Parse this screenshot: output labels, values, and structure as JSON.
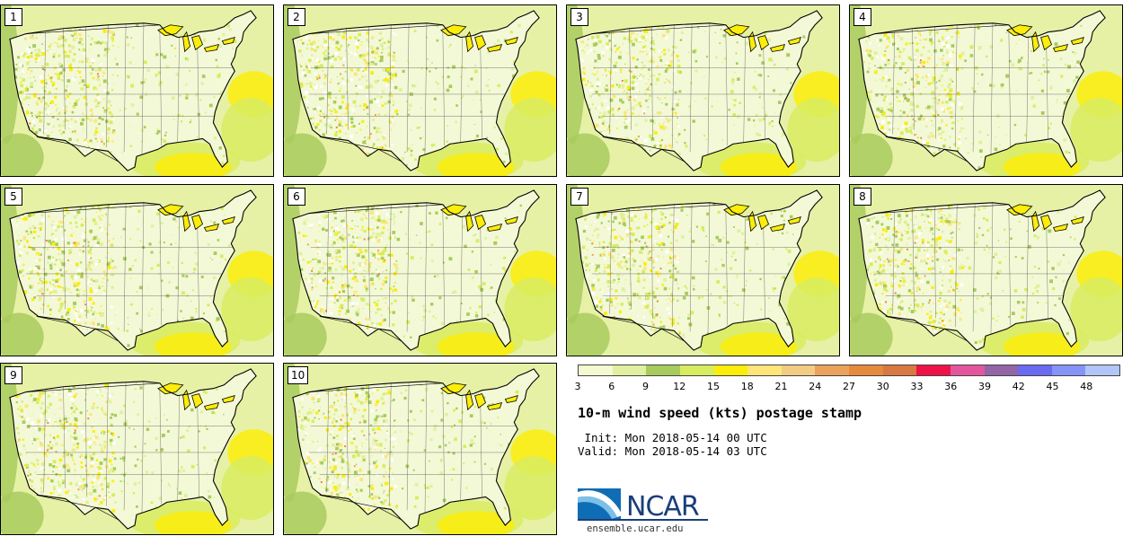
{
  "panels": [
    {
      "label": "1"
    },
    {
      "label": "2"
    },
    {
      "label": "3"
    },
    {
      "label": "4"
    },
    {
      "label": "5"
    },
    {
      "label": "6"
    },
    {
      "label": "7"
    },
    {
      "label": "8"
    },
    {
      "label": "9"
    },
    {
      "label": "10"
    }
  ],
  "colorbar": {
    "colors": [
      "#f4f9d2",
      "#e0f0a0",
      "#a8cb5e",
      "#d8ec60",
      "#fced0a",
      "#fde57a",
      "#f2cb84",
      "#eca25a",
      "#e68a3e",
      "#d97840",
      "#ee1248",
      "#e3569e",
      "#9165a6",
      "#6a69f2",
      "#8594f8",
      "#b3c5f8"
    ],
    "tick_labels": [
      "3",
      "6",
      "9",
      "12",
      "15",
      "18",
      "21",
      "24",
      "27",
      "30",
      "33",
      "36",
      "39",
      "42",
      "45",
      "48"
    ]
  },
  "title": "10-m wind speed (kts) postage stamp",
  "init_text": " Init: Mon 2018-05-14 00 UTC",
  "valid_text": "Valid: Mon 2018-05-14 03 UTC",
  "logo": {
    "text": "NCAR",
    "site": "ensemble.ucar.edu",
    "colors": {
      "blue": "#1a3f7a",
      "sky": "#3a8fd0"
    }
  }
}
